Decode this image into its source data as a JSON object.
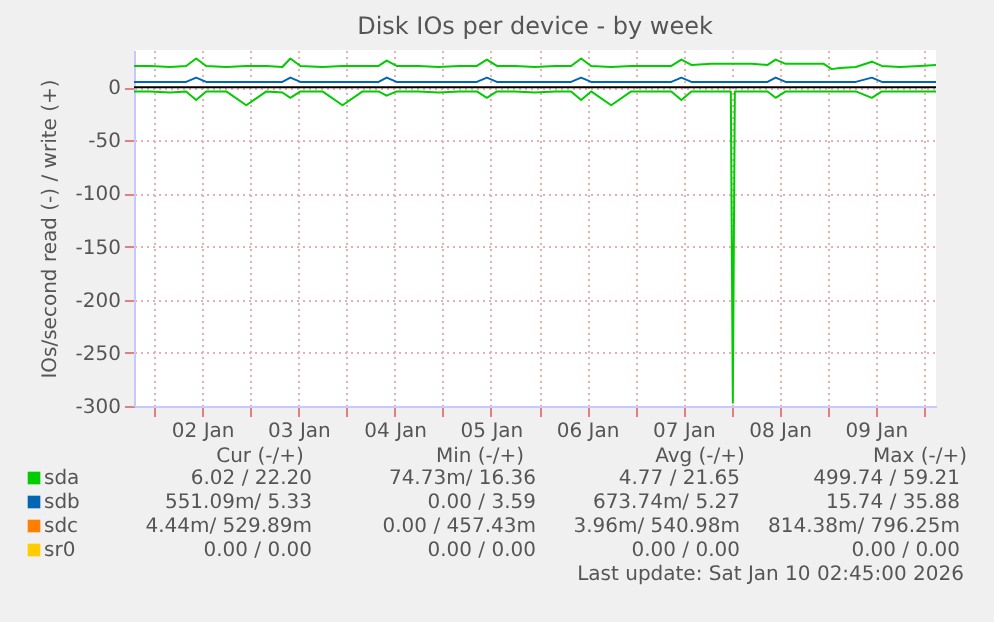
{
  "chart_data": {
    "type": "line",
    "title": "Disk IOs per device - by week",
    "ylabel": "IOs/second read (-) / write (+)",
    "x": [
      "2026-01-01T19:00",
      "2026-01-01T23:00",
      "2026-01-02T04:00",
      "2026-01-02T08:00",
      "2026-01-02T10:30",
      "2026-01-02T13:00",
      "2026-01-02T18:00",
      "2026-01-02T23:00",
      "2026-01-03T04:00",
      "2026-01-03T08:00",
      "2026-01-03T10:00",
      "2026-01-03T12:30",
      "2026-01-03T18:00",
      "2026-01-03T23:00",
      "2026-01-04T04:00",
      "2026-01-04T08:00",
      "2026-01-04T10:00",
      "2026-01-04T12:30",
      "2026-01-04T18:00",
      "2026-01-04T23:00",
      "2026-01-05T04:00",
      "2026-01-05T08:30",
      "2026-01-05T11:00",
      "2026-01-05T13:30",
      "2026-01-05T18:00",
      "2026-01-05T23:00",
      "2026-01-06T04:00",
      "2026-01-06T08:00",
      "2026-01-06T10:30",
      "2026-01-06T13:00",
      "2026-01-06T18:00",
      "2026-01-06T23:00",
      "2026-01-07T04:00",
      "2026-01-07T09:00",
      "2026-01-07T11:30",
      "2026-01-07T14:00",
      "2026-01-07T19:00",
      "2026-01-07T23:50",
      "2026-01-08T00:20",
      "2026-01-08T00:50",
      "2026-01-08T05:00",
      "2026-01-08T09:00",
      "2026-01-08T11:00",
      "2026-01-08T13:30",
      "2026-01-08T18:00",
      "2026-01-08T23:00",
      "2026-01-09T01:00",
      "2026-01-09T03:00",
      "2026-01-09T07:00",
      "2026-01-09T11:00",
      "2026-01-09T13:30",
      "2026-01-09T18:00",
      "2026-01-09T23:00",
      "2026-01-10T03:00"
    ],
    "series": [
      {
        "name": "sda",
        "color": "#00cc00",
        "values": [
          20,
          20,
          19,
          20,
          27,
          20,
          19,
          20,
          20,
          19,
          27,
          20,
          19,
          20,
          20,
          20,
          25,
          20,
          20,
          19,
          20,
          20,
          26,
          20,
          20,
          19,
          20,
          20,
          27,
          20,
          19,
          20,
          20,
          20,
          26,
          21,
          22,
          22,
          22,
          22,
          22,
          21,
          26,
          22,
          22,
          22,
          17,
          18,
          19,
          24,
          20,
          19,
          20,
          21
        ]
      },
      {
        "color": "#00cc00",
        "values": [
          -4,
          -4,
          -5,
          -4,
          -12,
          -4,
          -4,
          -17,
          -4,
          -5,
          -10,
          -4,
          -4,
          -17,
          -4,
          -4,
          -8,
          -4,
          -4,
          -5,
          -4,
          -4,
          -10,
          -4,
          -4,
          -5,
          -4,
          -4,
          -12,
          -4,
          -17,
          -4,
          -4,
          -4,
          -12,
          -4,
          -4,
          -4,
          -297,
          -4,
          -4,
          -4,
          -10,
          -4,
          -4,
          -4,
          -4,
          -4,
          -4,
          -10,
          -4,
          -4,
          -4,
          -4
        ]
      },
      {
        "name": "sdb",
        "color": "#0066b3",
        "values": [
          5,
          5,
          5,
          5,
          9,
          5,
          5,
          5,
          5,
          5,
          9,
          5,
          5,
          5,
          5,
          5,
          9,
          5,
          5,
          5,
          5,
          5,
          9,
          5,
          5,
          5,
          5,
          5,
          9,
          5,
          5,
          5,
          5,
          5,
          9,
          5,
          5,
          5,
          5,
          5,
          5,
          5,
          9,
          5,
          5,
          5,
          5,
          5,
          5,
          9,
          5,
          5,
          5,
          5
        ]
      },
      {
        "name": "sdc",
        "color": "#ff8000",
        "values": [
          null,
          null,
          null,
          null,
          null,
          null,
          null,
          null,
          null,
          null,
          null,
          null,
          null,
          null,
          null,
          null,
          null,
          null,
          null,
          null,
          null,
          null,
          null,
          null,
          null,
          null,
          null,
          null,
          null,
          null,
          null,
          null,
          null,
          null,
          null,
          null,
          null,
          null,
          null,
          null,
          null,
          null,
          null,
          null,
          null,
          null,
          null,
          null,
          null,
          null,
          null,
          null,
          null,
          null
        ]
      },
      {
        "name": "sr0",
        "color": "#ffcc00",
        "values": [
          null,
          null,
          null,
          null,
          null,
          null,
          null,
          null,
          null,
          null,
          null,
          null,
          null,
          null,
          null,
          null,
          null,
          null,
          null,
          null,
          null,
          null,
          null,
          null,
          null,
          null,
          null,
          null,
          null,
          null,
          null,
          null,
          null,
          null,
          null,
          null,
          null,
          null,
          null,
          null,
          null,
          null,
          null,
          null,
          null,
          null,
          null,
          null,
          null,
          null,
          null,
          null,
          null,
          null
        ]
      }
    ],
    "xlim": [
      "2026-01-01T19:00",
      "2026-01-10T03:00"
    ],
    "xticks": [
      {
        "value": "2026-01-02T00:00",
        "label": null
      },
      {
        "value": "2026-01-02T12:00",
        "label": "02 Jan"
      },
      {
        "value": "2026-01-03T00:00",
        "label": null
      },
      {
        "value": "2026-01-03T12:00",
        "label": "03 Jan"
      },
      {
        "value": "2026-01-04T00:00",
        "label": null
      },
      {
        "value": "2026-01-04T12:00",
        "label": "04 Jan"
      },
      {
        "value": "2026-01-05T00:00",
        "label": null
      },
      {
        "value": "2026-01-05T12:00",
        "label": "05 Jan"
      },
      {
        "value": "2026-01-06T00:00",
        "label": null
      },
      {
        "value": "2026-01-06T12:00",
        "label": "06 Jan"
      },
      {
        "value": "2026-01-07T00:00",
        "label": null
      },
      {
        "value": "2026-01-07T12:00",
        "label": "07 Jan"
      },
      {
        "value": "2026-01-08T00:00",
        "label": null
      },
      {
        "value": "2026-01-08T12:00",
        "label": "08 Jan"
      },
      {
        "value": "2026-01-09T00:00",
        "label": null
      },
      {
        "value": "2026-01-09T12:00",
        "label": "09 Jan"
      },
      {
        "value": "2026-01-10T00:00",
        "label": null
      }
    ],
    "ylim": [
      -300,
      35
    ],
    "yticks": [
      -300,
      -250,
      -200,
      -150,
      -100,
      -50,
      0
    ],
    "ref_lines": [
      {
        "axis": "y",
        "value": 0,
        "color": "#000000"
      }
    ],
    "grid": true,
    "legend": "bottom",
    "line_style": "solid",
    "marker": "none",
    "annotations": [
      "Cur (-/+)",
      "Min (-/+)",
      "Avg (-/+)",
      "Max (-/+)",
      "6.02 /    22.20",
      "74.73m/    16.36",
      "4.77 /    21.65",
      "499.74 /    59.21",
      "551.09m/     5.33",
      "0.00 /     3.59",
      "673.74m/     5.27",
      "15.74 /    35.88",
      "4.44m/  529.89m",
      "0.00 /  457.43m",
      "3.96m/  540.98m",
      "814.38m/  796.25m",
      "0.00 /     0.00",
      "0.00 /     0.00",
      "0.00 /     0.00",
      "0.00 /     0.00",
      "Last update: Sat Jan 10 02:45:00 2026"
    ]
  }
}
